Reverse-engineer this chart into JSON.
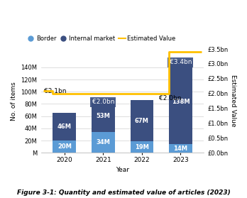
{
  "years": [
    2020,
    2021,
    2022,
    2023
  ],
  "border_values": [
    20,
    34,
    19,
    14
  ],
  "internal_values": [
    46,
    53,
    67,
    138
  ],
  "border_color": "#5b9bd5",
  "internal_color": "#3b4f80",
  "line_color": "#ffc000",
  "bar_width": 0.6,
  "ylim_left": [
    0,
    170
  ],
  "ylim_right": [
    0,
    3.5
  ],
  "yticks_left": [
    0,
    20,
    40,
    60,
    80,
    100,
    120,
    140
  ],
  "ytick_labels_left": [
    "M",
    "20M",
    "40M",
    "60M",
    "80M",
    "100M",
    "120M",
    "140M"
  ],
  "yticks_right": [
    0.0,
    0.5,
    1.0,
    1.5,
    2.0,
    2.5,
    3.0,
    3.5
  ],
  "ytick_labels_right": [
    "£0.0bn",
    "£0.5bn",
    "£1.0bn",
    "£1.5bn",
    "£2.0bn",
    "£2.5bn",
    "£3.0bn",
    "£3.5bn"
  ],
  "xlabel": "Year",
  "ylabel_left": "No. of items",
  "ylabel_right": "Estimated Value",
  "title": "Figure 3-1: Quantity and estimated value of articles (2023)",
  "legend_border_label": "Border",
  "legend_internal_label": "Internal market",
  "legend_line_label": "Estimated Value",
  "background_color": "#ffffff",
  "text_color_light": "#ffffff",
  "annotation_box_color": "#3b4f80",
  "line_step_x": [
    -0.55,
    -0.3,
    -0.3,
    0.7,
    0.7,
    1.7,
    1.7,
    2.7,
    2.7,
    3.55
  ],
  "line_step_y": [
    2.1,
    2.1,
    2.0,
    2.0,
    2.0,
    2.0,
    2.0,
    2.0,
    3.4,
    3.4
  ]
}
